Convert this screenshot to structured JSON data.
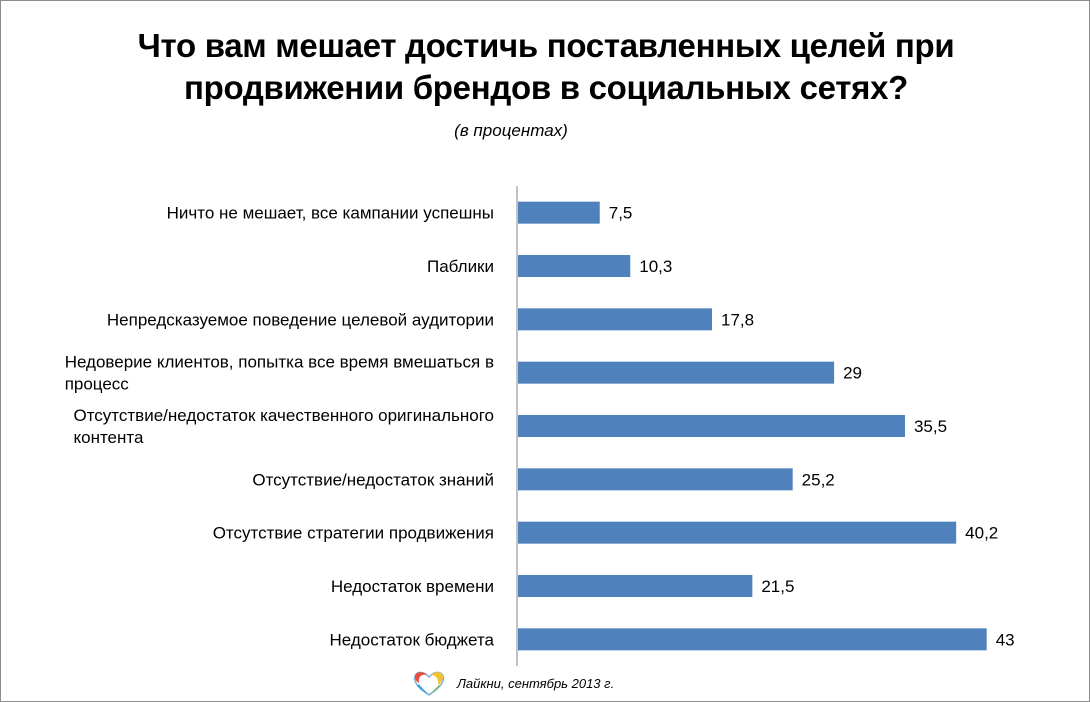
{
  "chart_data": {
    "type": "bar",
    "orientation": "horizontal",
    "title_lines": [
      "Что вам мешает достичь поставленных целей при",
      "продвижении брендов в социальных сетях?"
    ],
    "subtitle": "(в процентах)",
    "categories": [
      [
        "Ничто не мешает, все кампании успешны"
      ],
      [
        "Паблики"
      ],
      [
        "Непредсказуемое поведение целевой аудитории"
      ],
      [
        "Недоверие клиентов, попытка все время вмешаться в",
        "процесс"
      ],
      [
        "Отсутствие/недостаток качественного оригинального",
        "контента"
      ],
      [
        "Отсутствие/недостаток знаний"
      ],
      [
        "Отсутствие стратегии продвижения"
      ],
      [
        "Недостаток времени"
      ],
      [
        "Недостаток бюджета"
      ]
    ],
    "values": [
      7.5,
      10.3,
      17.8,
      29,
      35.5,
      25.2,
      40.2,
      21.5,
      43
    ],
    "value_labels": [
      "7,5",
      "10,3",
      "17,8",
      "29",
      "35,5",
      "25,2",
      "40,2",
      "21,5",
      "43"
    ],
    "xlim": [
      0,
      45
    ],
    "grid": false,
    "legend": "none",
    "bar_color": "#4f81bd",
    "axis_color": "#868686"
  },
  "footer": {
    "logo": "laikni-logo-icon",
    "text": "Лайкни, сентябрь 2013 г."
  }
}
